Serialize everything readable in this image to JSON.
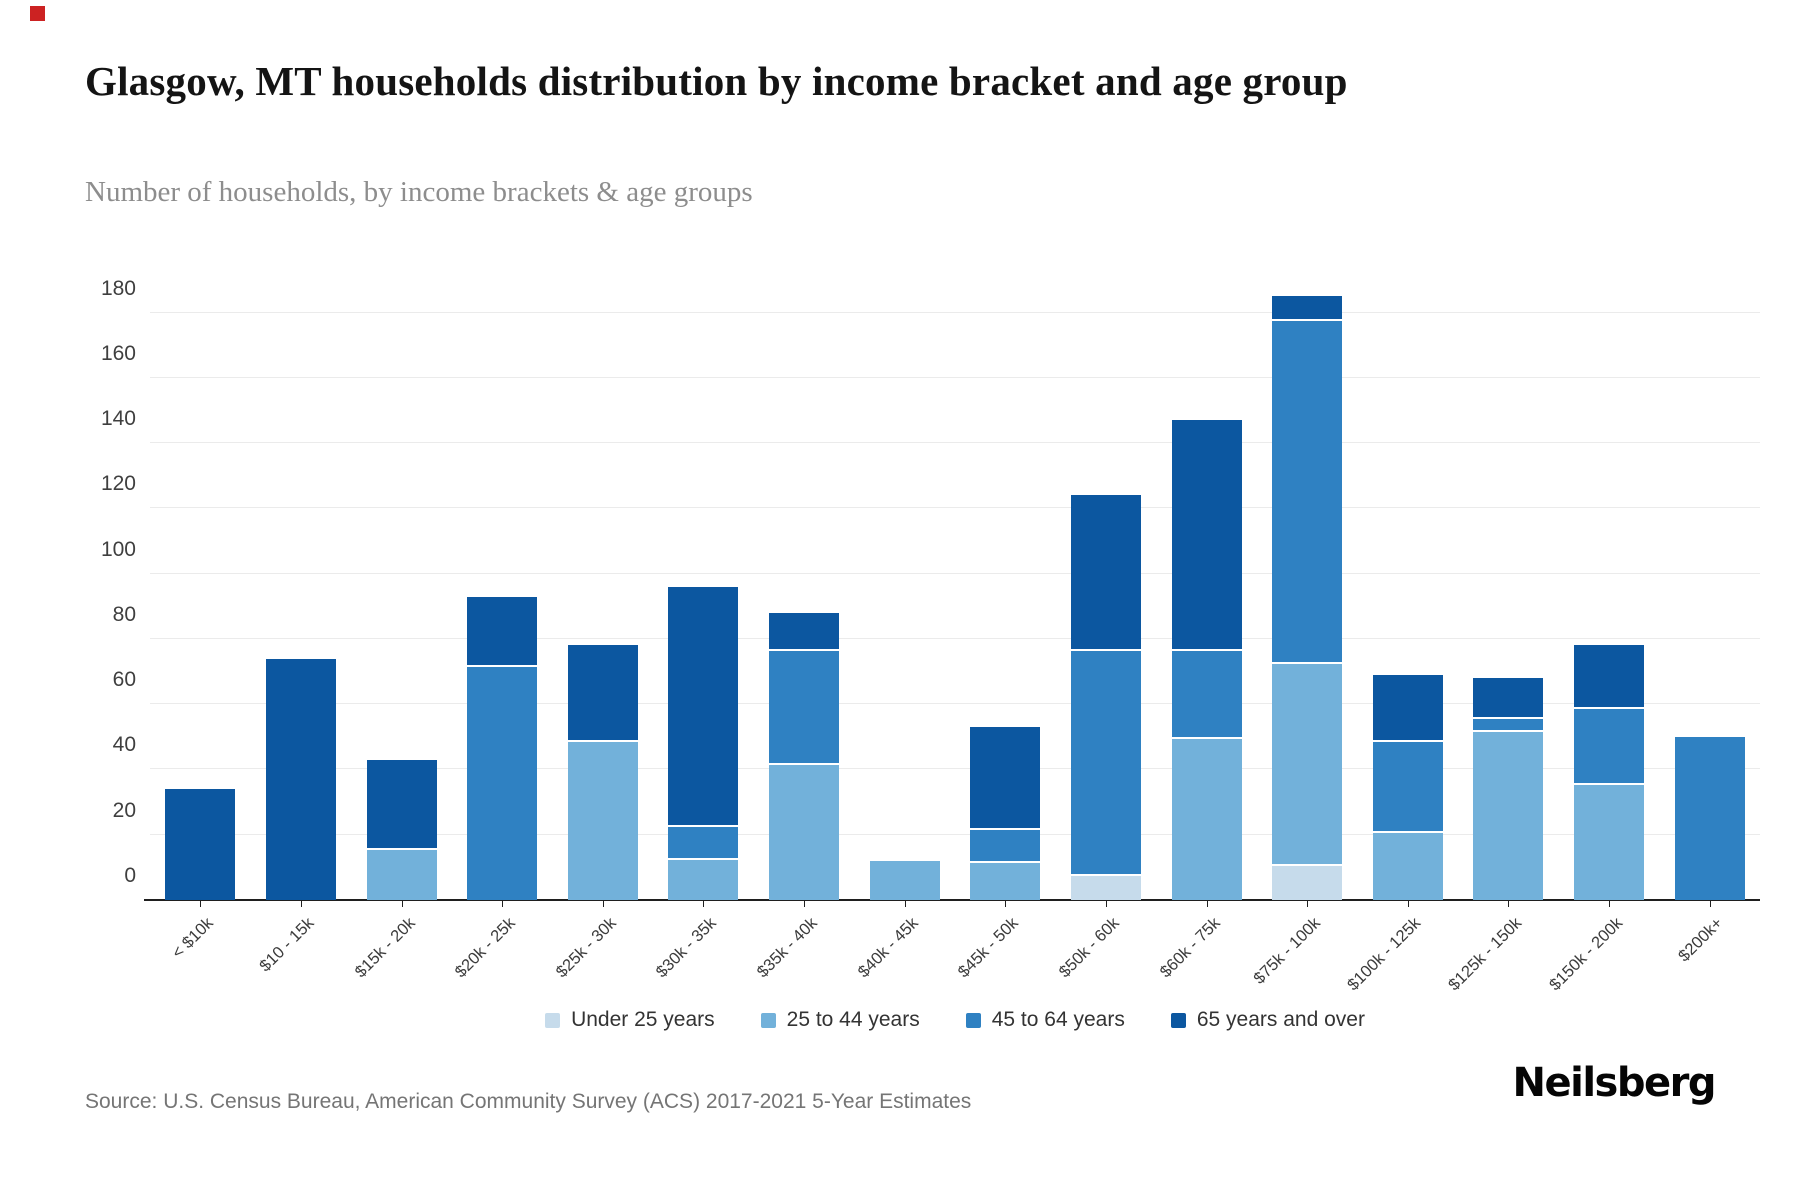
{
  "page": {
    "accent_color": "#cc2222"
  },
  "header": {
    "title": "Glasgow, MT households distribution by income bracket and age group",
    "subtitle": "Number of households, by income brackets & age groups"
  },
  "chart_data": {
    "type": "bar",
    "stacked": true,
    "title": "Glasgow, MT households distribution by income bracket and age group",
    "xlabel": "",
    "ylabel": "",
    "ylim": [
      0,
      190
    ],
    "yticks": [
      0,
      20,
      40,
      60,
      80,
      100,
      120,
      140,
      160,
      180
    ],
    "grid": true,
    "legend_position": "bottom",
    "categories": [
      "< $10k",
      "$10 - 15k",
      "$15k - 20k",
      "$20k - 25k",
      "$25k - 30k",
      "$30k - 35k",
      "$35k - 40k",
      "$40k - 45k",
      "$45k - 50k",
      "$50k - 60k",
      "$60k - 75k",
      "$75k - 100k",
      "$100k - 125k",
      "$125k - 150k",
      "$150k - 200k",
      "$200k+"
    ],
    "series": [
      {
        "name": "Under 25 years",
        "color": "#c6dbeb",
        "values": [
          0,
          0,
          0,
          0,
          0,
          0,
          0,
          0,
          0,
          8,
          0,
          11,
          0,
          0,
          0,
          0
        ]
      },
      {
        "name": "25 to 44 years",
        "color": "#72b1da",
        "values": [
          0,
          0,
          16,
          0,
          49,
          13,
          42,
          12,
          12,
          0,
          50,
          62,
          21,
          52,
          36,
          0
        ]
      },
      {
        "name": "45 to 64 years",
        "color": "#2f81c2",
        "values": [
          0,
          0,
          0,
          72,
          0,
          10,
          35,
          0,
          10,
          69,
          27,
          105,
          28,
          4,
          23,
          50
        ]
      },
      {
        "name": "65 years and over",
        "color": "#0c57a0",
        "values": [
          34,
          74,
          27,
          21,
          29,
          73,
          11,
          0,
          31,
          47,
          70,
          7,
          20,
          12,
          19,
          0
        ]
      }
    ],
    "totals": [
      34,
      74,
      43,
      93,
      78,
      96,
      88,
      12,
      53,
      124,
      147,
      185,
      69,
      68,
      78,
      50
    ]
  },
  "footer": {
    "source": "Source: U.S. Census Bureau, American Community Survey (ACS) 2017-2021 5-Year Estimates",
    "logo": "Neilsberg"
  }
}
